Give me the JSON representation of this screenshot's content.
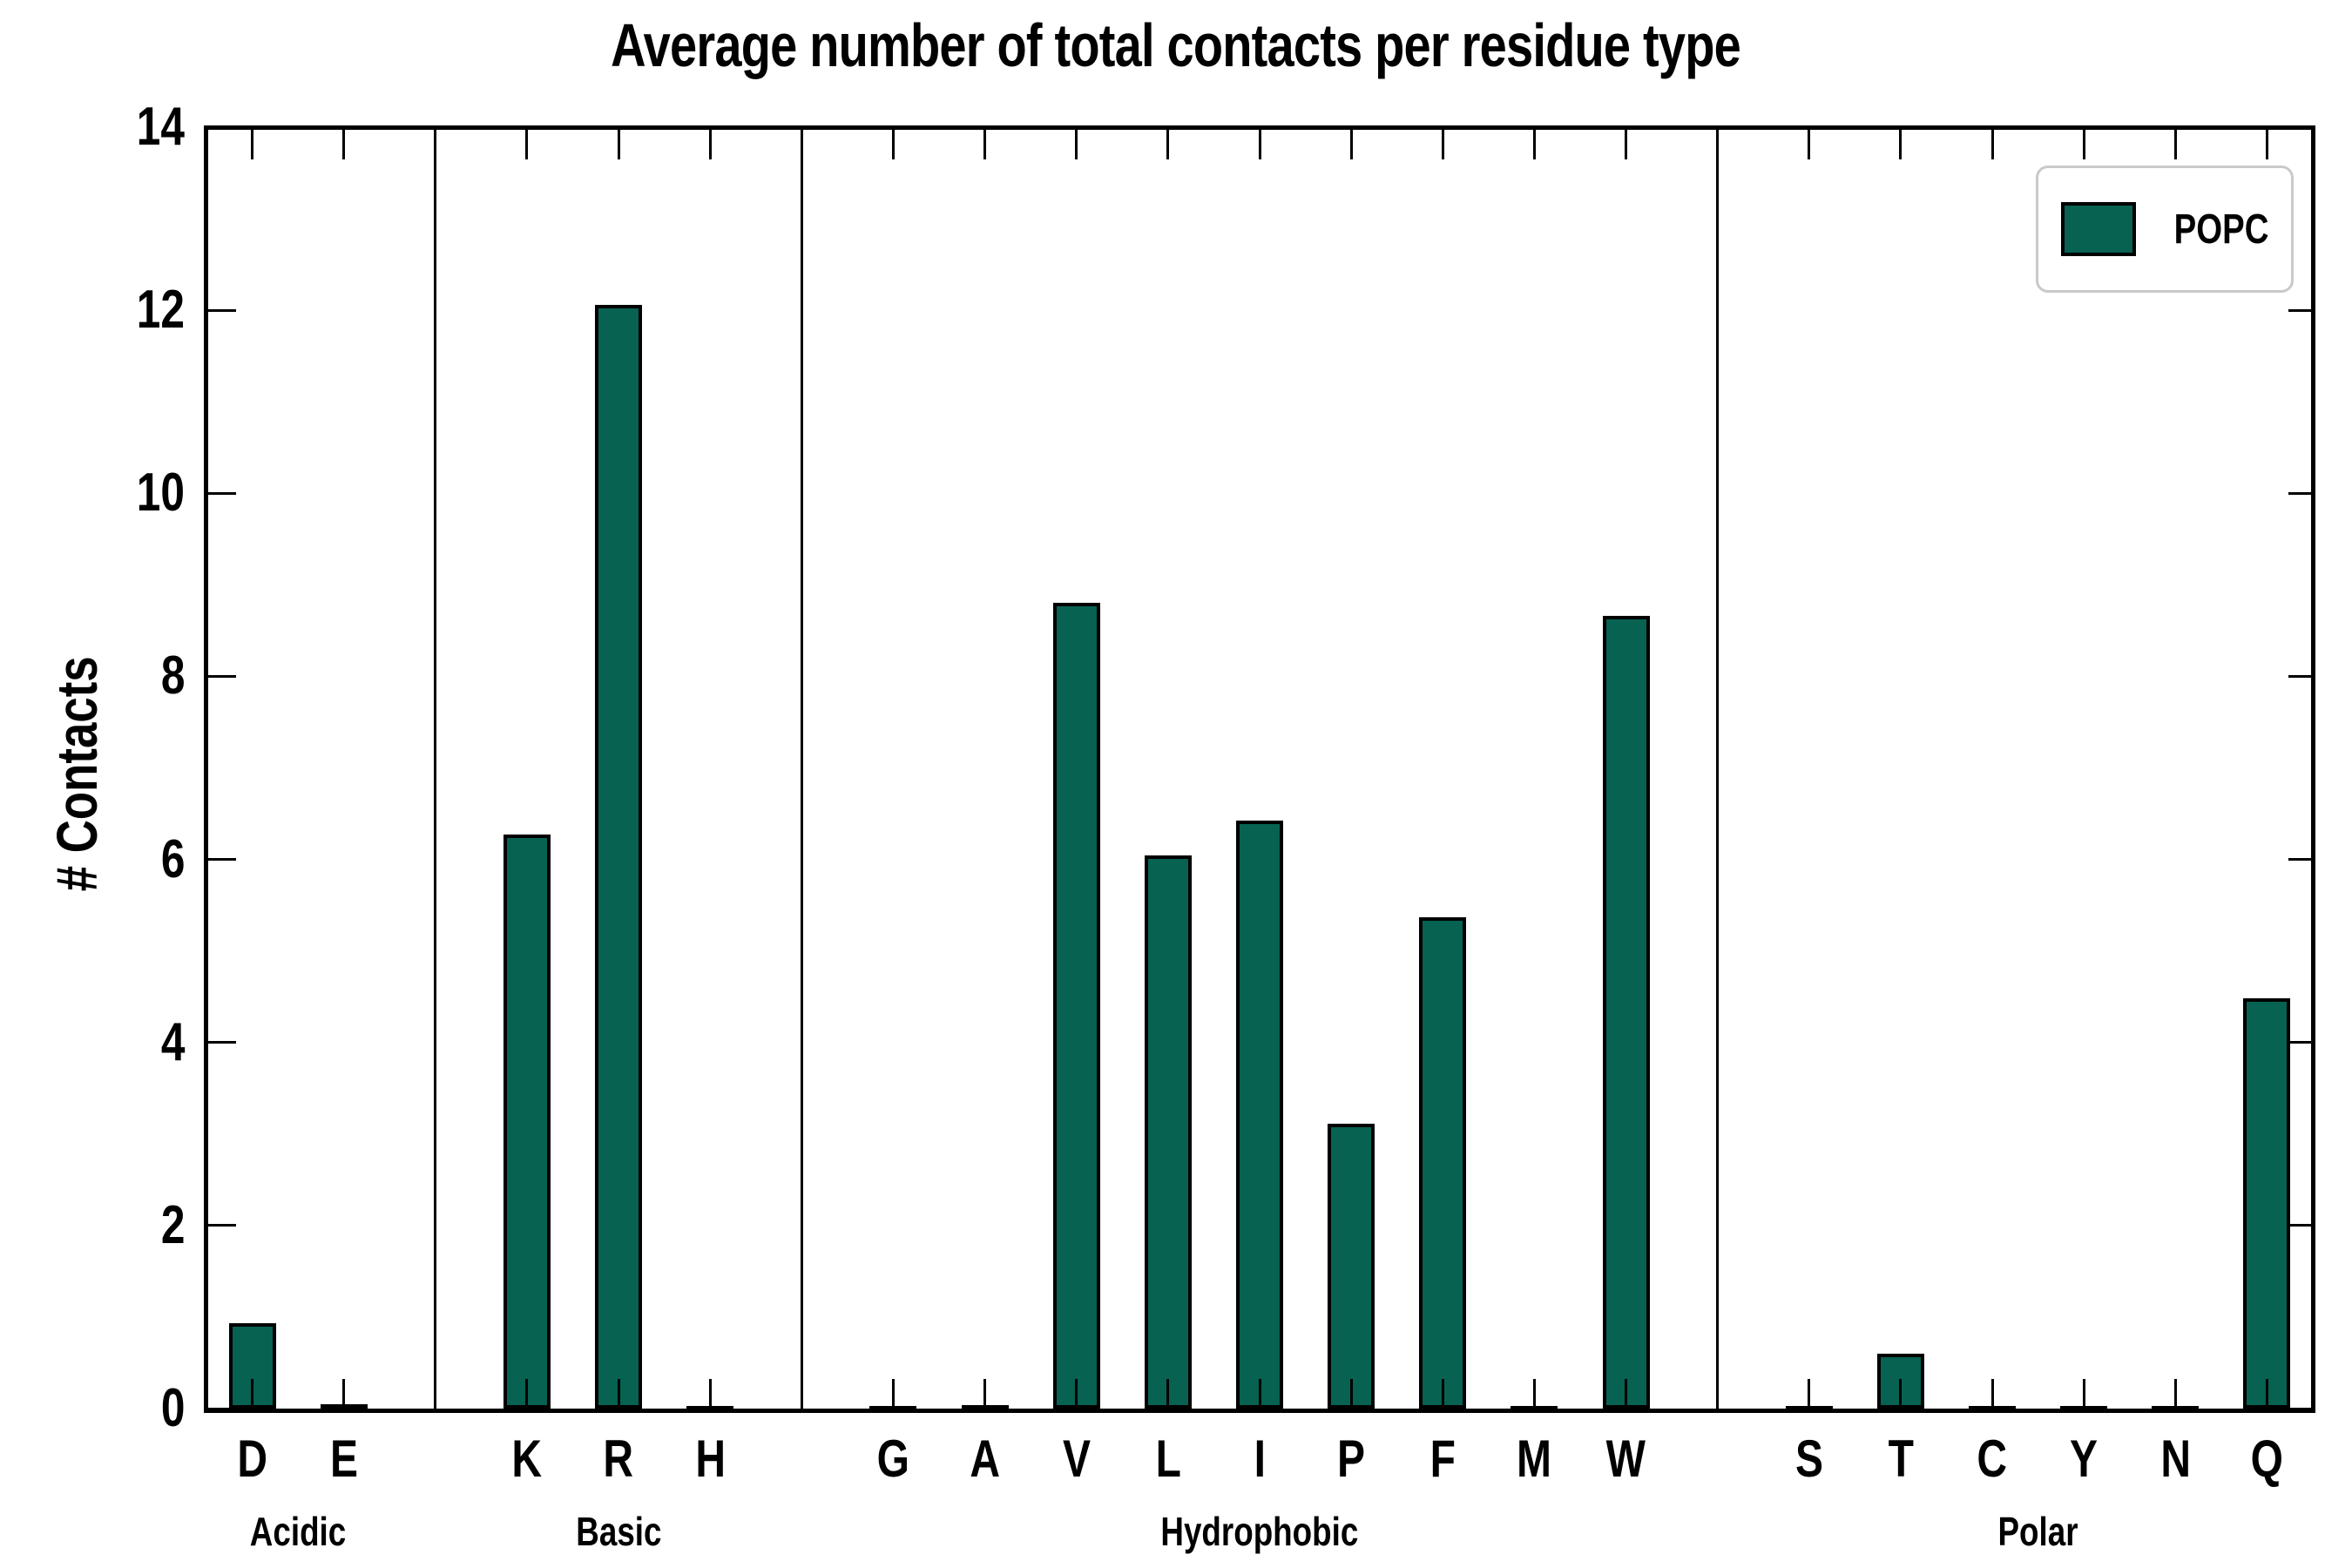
{
  "title": "Average number of total contacts per residue type",
  "ylabel": "# Contacts",
  "legend": {
    "label": "POPC"
  },
  "colors": {
    "bar_fill": "#076252",
    "bar_edge": "#000000",
    "axis": "#000000",
    "legend_border": "#c9c9c9"
  },
  "chart_data": {
    "type": "bar",
    "title": "Average number of total contacts per residue type",
    "xlabel": "",
    "ylabel": "# Contacts",
    "ylim": [
      0,
      14
    ],
    "yticks": [
      0,
      2,
      4,
      6,
      8,
      10,
      12,
      14
    ],
    "grid": false,
    "legend_position": "upper right",
    "series": [
      {
        "name": "POPC",
        "color": "#076252"
      }
    ],
    "groups": [
      {
        "label": "Acidic",
        "categories": [
          "D",
          "E"
        ],
        "values": [
          0.93,
          0.05
        ]
      },
      {
        "label": "Basic",
        "categories": [
          "K",
          "R",
          "H"
        ],
        "values": [
          6.27,
          12.06,
          0.03
        ]
      },
      {
        "label": "Hydrophobic",
        "categories": [
          "G",
          "A",
          "V",
          "L",
          "I",
          "P",
          "F",
          "M",
          "W"
        ],
        "values": [
          0.03,
          0.04,
          8.8,
          6.04,
          6.42,
          3.11,
          5.37,
          0.03,
          8.66
        ]
      },
      {
        "label": "Polar",
        "categories": [
          "S",
          "T",
          "C",
          "Y",
          "N",
          "Q"
        ],
        "values": [
          0.03,
          0.6,
          0.03,
          0.02,
          0.03,
          4.48
        ]
      }
    ]
  }
}
